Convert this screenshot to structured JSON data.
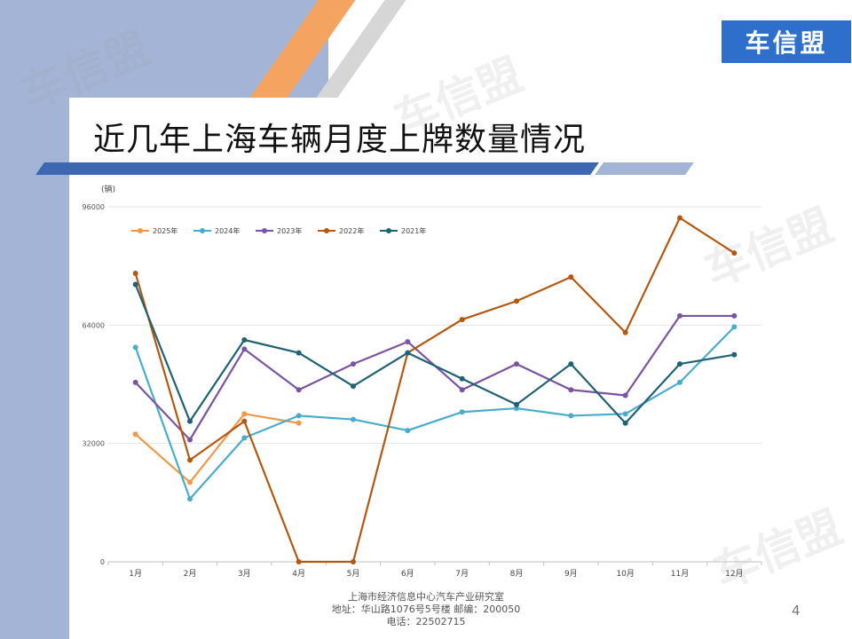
{
  "slide": {
    "title": "近几年上海车辆月度上牌数量情况",
    "logo_text": "车信盟",
    "watermark_text": "车信盟",
    "page_number": "4",
    "footer": {
      "line1": "上海市经济信息中心汽车产业研究室",
      "line2": "地址：华山路1076号5号楼   邮编：200050",
      "line3": "电话：22502715"
    },
    "colors": {
      "side_panel": "#a3b4d6",
      "title_bar": "#3d67b0",
      "logo_bg": "#2f6fcc",
      "stripe_orange": "#f4a460"
    }
  },
  "chart_data": {
    "type": "line",
    "title": "",
    "ylabel": "(辆)",
    "xlabel": "",
    "ylim": [
      0,
      96000
    ],
    "yticks": [
      0,
      32000,
      64000,
      96000
    ],
    "grid": true,
    "legend_position": "top-left",
    "categories": [
      "1月",
      "2月",
      "3月",
      "4月",
      "5月",
      "6月",
      "7月",
      "8月",
      "9月",
      "10月",
      "11月",
      "12月"
    ],
    "series": [
      {
        "name": "2025年",
        "color": "#f0984a",
        "values": [
          34500,
          21500,
          40000,
          37500,
          null,
          null,
          null,
          null,
          null,
          null,
          null,
          null
        ]
      },
      {
        "name": "2024年",
        "color": "#4aaccc",
        "values": [
          58000,
          17000,
          33500,
          39500,
          38500,
          35500,
          40500,
          41500,
          39500,
          40000,
          48500,
          63500
        ]
      },
      {
        "name": "2023年",
        "color": "#7a53a3",
        "values": [
          48500,
          33000,
          57500,
          46500,
          53500,
          59500,
          46500,
          53500,
          46500,
          45000,
          66500,
          66500
        ]
      },
      {
        "name": "2022年",
        "color": "#b5570f",
        "values": [
          78000,
          27500,
          38000,
          0,
          0,
          56500,
          65500,
          70500,
          77000,
          62000,
          93000,
          83500
        ]
      },
      {
        "name": "2021年",
        "color": "#1f6274",
        "values": [
          75000,
          38000,
          60000,
          56500,
          47500,
          56500,
          49500,
          42500,
          53500,
          37500,
          53500,
          56000
        ]
      }
    ]
  }
}
